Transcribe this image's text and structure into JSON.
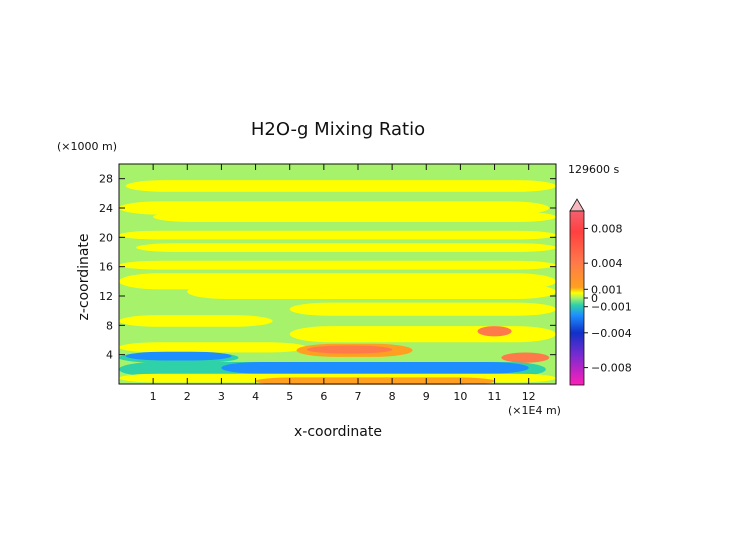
{
  "chart_data": {
    "type": "heatmap",
    "title": "H2O-g Mixing Ratio",
    "xlabel": "x-coordinate",
    "ylabel": "z-coordinate",
    "x_unit_label": "(×1E4 m)",
    "y_unit_label": "(×1000 m)",
    "time_label": "129600 s",
    "xlim": [
      0,
      12.8
    ],
    "ylim": [
      0,
      30
    ],
    "x_ticks": [
      1,
      2,
      3,
      4,
      5,
      6,
      7,
      8,
      9,
      10,
      11,
      12
    ],
    "y_ticks": [
      4,
      8,
      12,
      16,
      20,
      24,
      28
    ],
    "colorbar": {
      "range": [
        -0.01,
        0.01
      ],
      "tick_values": [
        0.008,
        0.004,
        0.001,
        0,
        -0.001,
        -0.004,
        -0.008
      ],
      "tick_labels": [
        "0.008",
        "0.004",
        "0.001",
        "0",
        "−0.001",
        "−0.004",
        "−0.008"
      ],
      "colors": {
        "max_arrow": "#f7b8bd",
        "strong_pos": "#f4606e",
        "pos": "#ff7a4a",
        "weak_pos": "#ffa020",
        "near_zero_pos": "#ffff00",
        "near_zero_neg": "#a6f26a",
        "weak_neg": "#2fd1a8",
        "neg": "#1e8eff",
        "strong_neg": "#1030c8",
        "very_neg": "#7a2bd0",
        "min": "#ff1fb8"
      }
    },
    "features": [
      {
        "kind": "band",
        "z_center": 27.0,
        "thickness": 0.8,
        "x_start": 0.2,
        "x_end": 12.8,
        "color_key": "near_zero_pos"
      },
      {
        "kind": "band",
        "z_center": 24.0,
        "thickness": 0.9,
        "x_start": 0.0,
        "x_end": 12.6,
        "color_key": "near_zero_pos"
      },
      {
        "kind": "band",
        "z_center": 22.8,
        "thickness": 0.7,
        "x_start": 1.0,
        "x_end": 12.8,
        "color_key": "near_zero_pos"
      },
      {
        "kind": "band",
        "z_center": 20.3,
        "thickness": 0.6,
        "x_start": 0.0,
        "x_end": 12.8,
        "color_key": "near_zero_pos"
      },
      {
        "kind": "band",
        "z_center": 18.6,
        "thickness": 0.6,
        "x_start": 0.5,
        "x_end": 12.8,
        "color_key": "near_zero_pos"
      },
      {
        "kind": "band",
        "z_center": 16.2,
        "thickness": 0.6,
        "x_start": 0.0,
        "x_end": 12.8,
        "color_key": "near_zero_pos"
      },
      {
        "kind": "band",
        "z_center": 14.0,
        "thickness": 1.1,
        "x_start": 0.0,
        "x_end": 12.8,
        "color_key": "near_zero_pos"
      },
      {
        "kind": "band",
        "z_center": 12.6,
        "thickness": 1.0,
        "x_start": 2.0,
        "x_end": 12.8,
        "color_key": "near_zero_pos"
      },
      {
        "kind": "band",
        "z_center": 10.2,
        "thickness": 0.9,
        "x_start": 5.0,
        "x_end": 12.8,
        "color_key": "near_zero_pos"
      },
      {
        "kind": "band",
        "z_center": 8.6,
        "thickness": 0.8,
        "x_start": 0.0,
        "x_end": 4.5,
        "color_key": "near_zero_pos"
      },
      {
        "kind": "band",
        "z_center": 6.8,
        "thickness": 1.1,
        "x_start": 5.0,
        "x_end": 12.8,
        "color_key": "near_zero_pos"
      },
      {
        "kind": "band",
        "z_center": 5.0,
        "thickness": 0.7,
        "x_start": 0.0,
        "x_end": 5.5,
        "color_key": "near_zero_pos"
      },
      {
        "kind": "band",
        "z_center": 4.6,
        "thickness": 0.9,
        "x_start": 5.2,
        "x_end": 8.6,
        "color_key": "weak_pos"
      },
      {
        "kind": "band",
        "z_center": 4.7,
        "thickness": 0.55,
        "x_start": 5.5,
        "x_end": 8.0,
        "color_key": "pos"
      },
      {
        "kind": "band",
        "z_center": 7.2,
        "thickness": 0.7,
        "x_start": 10.5,
        "x_end": 11.5,
        "color_key": "pos"
      },
      {
        "kind": "band",
        "z_center": 3.6,
        "thickness": 0.7,
        "x_start": 11.2,
        "x_end": 12.6,
        "color_key": "pos"
      },
      {
        "kind": "band",
        "z_center": 3.6,
        "thickness": 0.7,
        "x_start": 0.0,
        "x_end": 3.5,
        "color_key": "weak_neg"
      },
      {
        "kind": "band",
        "z_center": 3.8,
        "thickness": 0.6,
        "x_start": 0.2,
        "x_end": 3.3,
        "color_key": "neg"
      },
      {
        "kind": "band",
        "z_center": 2.0,
        "thickness": 1.0,
        "x_start": 0.0,
        "x_end": 12.5,
        "color_key": "weak_neg"
      },
      {
        "kind": "band",
        "z_center": 2.2,
        "thickness": 0.8,
        "x_start": 3.0,
        "x_end": 12.0,
        "color_key": "neg"
      },
      {
        "kind": "band",
        "z_center": 0.8,
        "thickness": 0.6,
        "x_start": 0.0,
        "x_end": 12.8,
        "color_key": "near_zero_pos"
      },
      {
        "kind": "band",
        "z_center": 0.4,
        "thickness": 0.5,
        "x_start": 4.0,
        "x_end": 11.0,
        "color_key": "weak_pos"
      }
    ]
  }
}
